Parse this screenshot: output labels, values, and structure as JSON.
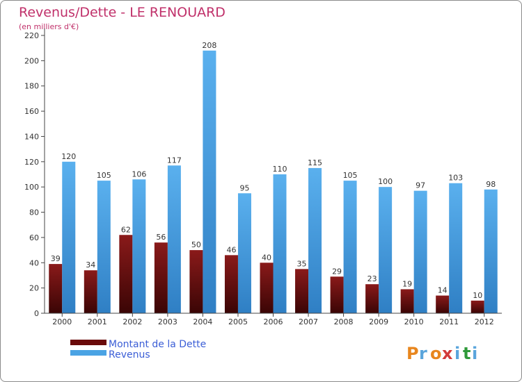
{
  "chart_data": {
    "type": "bar",
    "title": "Revenus/Dette - LE RENOUARD",
    "subtitle": "(en milliers d'€)",
    "categories": [
      "2000",
      "2001",
      "2002",
      "2003",
      "2004",
      "2005",
      "2006",
      "2007",
      "2008",
      "2009",
      "2010",
      "2011",
      "2012"
    ],
    "series": [
      {
        "name": "Montant de la Dette",
        "color": "#7a1212",
        "values": [
          39,
          34,
          62,
          56,
          50,
          46,
          40,
          35,
          29,
          23,
          19,
          14,
          10
        ]
      },
      {
        "name": "Revenus",
        "color": "#4aa3e4",
        "values": [
          120,
          105,
          106,
          117,
          208,
          95,
          110,
          115,
          105,
          100,
          97,
          103,
          98
        ]
      }
    ],
    "ylim": [
      0,
      220
    ],
    "yticks": [
      0,
      20,
      40,
      60,
      80,
      100,
      120,
      140,
      160,
      180,
      200,
      220
    ],
    "grid": false,
    "legend": "bottom-left",
    "xlabel": "",
    "ylabel": ""
  },
  "logo": {
    "text": "Proxiti",
    "letters": [
      "P",
      "r",
      "o",
      "x",
      "i",
      "t",
      "i"
    ],
    "colors": [
      "#e8861e",
      "#5aa5dc",
      "#e8861e",
      "#d23a3a",
      "#5aa5dc",
      "#2f9a3a",
      "#5aa5dc"
    ]
  },
  "colors": {
    "title": "#c0306a",
    "axis": "#333333",
    "legend_text": "#3b5ed6"
  }
}
